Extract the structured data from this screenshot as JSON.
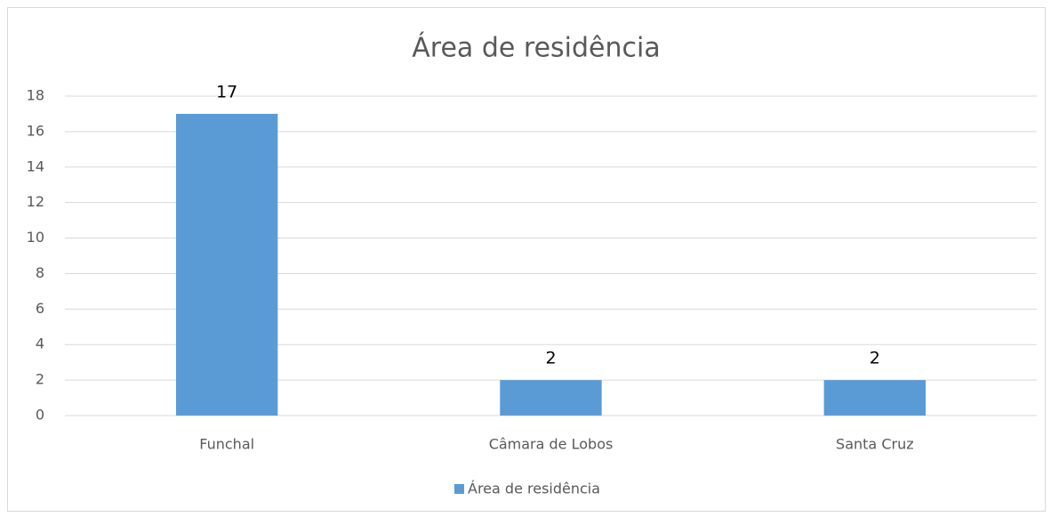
{
  "chart_data": {
    "type": "bar",
    "title": "Área de residência",
    "categories": [
      "Funchal",
      "Câmara de Lobos",
      "Santa Cruz"
    ],
    "series": [
      {
        "name": "Área de residência",
        "color": "#5b9bd5",
        "values": [
          17,
          2,
          2
        ]
      }
    ],
    "ylim": [
      0,
      18
    ],
    "yticks": [
      0,
      2,
      4,
      6,
      8,
      10,
      12,
      14,
      16,
      18
    ],
    "grid": true,
    "legend": "bottom"
  }
}
